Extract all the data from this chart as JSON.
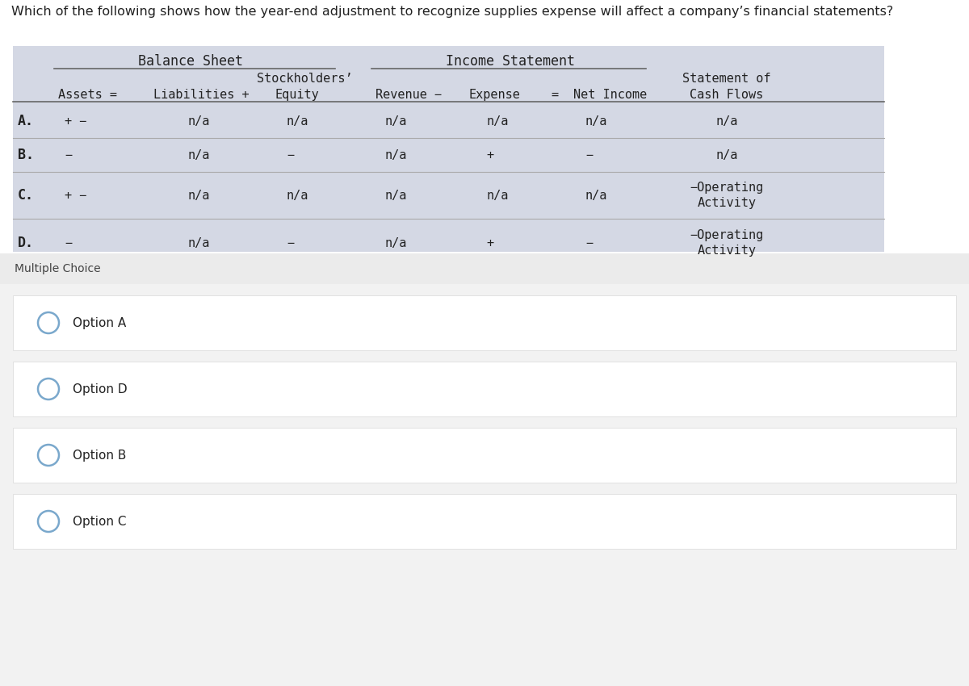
{
  "question": "Which of the following shows how the year-end adjustment to recognize supplies expense will affect a company’s financial statements?",
  "bg_color": "#ffffff",
  "table_bg": "#d4d8e4",
  "font_color": "#222222",
  "monospace_font": "DejaVu Sans Mono",
  "sans_font": "DejaVu Sans",
  "multiple_choice_label": "Multiple Choice",
  "options": [
    "Option A",
    "Option D",
    "Option B",
    "Option C"
  ],
  "section_bg_light": "#f2f2f2",
  "section_bg_white": "#ffffff",
  "option_circle_color": "#7aa8cc",
  "row_configs": [
    [
      "A.",
      "+ −",
      "n/a",
      "n/a",
      "n/a",
      "n/a",
      "n/a",
      "n/a"
    ],
    [
      "B.",
      "−",
      "n/a",
      "−",
      "n/a",
      "+",
      "−",
      "n/a"
    ],
    [
      "C.",
      "+ −",
      "n/a",
      "n/a",
      "n/a",
      "n/a",
      "n/a",
      "−Operating\nActivity"
    ],
    [
      "D.",
      "−",
      "n/a",
      "−",
      "n/a",
      "+",
      "−",
      "−Operating\nActivity"
    ]
  ],
  "col_line_color": "#666666",
  "row_sep_color": "#aaaaaa"
}
